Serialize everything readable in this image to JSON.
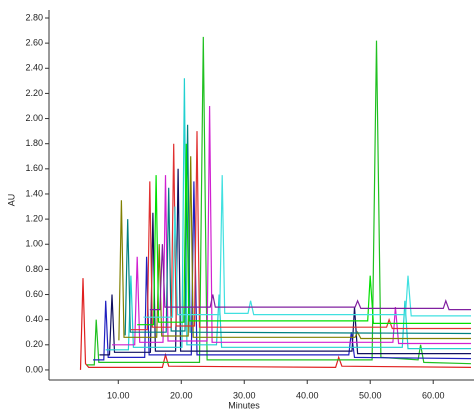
{
  "chart_data": {
    "type": "line",
    "ylabel": "AU",
    "xlabel": "Minutes",
    "xlim": [
      -1,
      66
    ],
    "ylim": [
      -0.08,
      2.8
    ],
    "xticks": [
      {
        "value": 10,
        "label": "10.00"
      },
      {
        "value": 20,
        "label": "20.00"
      },
      {
        "value": 30,
        "label": "30.00"
      },
      {
        "value": 40,
        "label": "40.00"
      },
      {
        "value": 50,
        "label": "50.00"
      },
      {
        "value": 60,
        "label": "60.00"
      }
    ],
    "yticks": [
      {
        "value": 0,
        "label": "0.00"
      },
      {
        "value": 0.2,
        "label": "0.20"
      },
      {
        "value": 0.4,
        "label": "0.40"
      },
      {
        "value": 0.6,
        "label": "0.60"
      },
      {
        "value": 0.8,
        "label": "0.80"
      },
      {
        "value": 1.0,
        "label": "1.00"
      },
      {
        "value": 1.2,
        "label": "1.20"
      },
      {
        "value": 1.4,
        "label": "1.40"
      },
      {
        "value": 1.6,
        "label": "1.60"
      },
      {
        "value": 1.8,
        "label": "1.80"
      },
      {
        "value": 2.0,
        "label": "2.00"
      },
      {
        "value": 2.2,
        "label": "2.20"
      },
      {
        "value": 2.4,
        "label": "2.40"
      },
      {
        "value": 2.6,
        "label": "2.60"
      },
      {
        "value": 2.8,
        "label": "2.80"
      }
    ],
    "series": [
      {
        "color": "#e02020",
        "x": [
          4,
          4.4,
          4.8,
          5.3,
          17,
          17.5,
          18,
          44.5,
          45,
          45.5,
          66
        ],
        "values": [
          0,
          0.73,
          0.05,
          0.02,
          0.02,
          0.12,
          0.03,
          0.02,
          0.1,
          0.03,
          0.02
        ]
      },
      {
        "color": "#20c020",
        "x": [
          5,
          6.2,
          6.5,
          6.9,
          22.9,
          23.5,
          24.1,
          50.3,
          51,
          51.7,
          57.6,
          58,
          58.5,
          66
        ],
        "values": [
          0.04,
          0.04,
          0.4,
          0.06,
          0.06,
          2.65,
          0.08,
          0.08,
          2.62,
          0.1,
          0.08,
          0.2,
          0.06,
          0.05
        ]
      },
      {
        "color": "#2020c0",
        "x": [
          6,
          7.7,
          8,
          8.4,
          14.2,
          14.5,
          14.9,
          21.6,
          22,
          22.5,
          46.6,
          47,
          47.5,
          66
        ],
        "values": [
          0.08,
          0.08,
          0.55,
          0.1,
          0.1,
          0.9,
          0.12,
          0.12,
          1.5,
          0.12,
          0.12,
          0.3,
          0.1,
          0.09
        ]
      },
      {
        "color": "#101060",
        "x": [
          7,
          8.6,
          9,
          9.4,
          15.1,
          15.5,
          15.9,
          19.1,
          19.5,
          19.9,
          47.1,
          47.5,
          48,
          66
        ],
        "values": [
          0.12,
          0.12,
          0.6,
          0.14,
          0.14,
          1.25,
          0.15,
          0.15,
          1.6,
          0.15,
          0.15,
          0.5,
          0.13,
          0.13
        ]
      },
      {
        "color": "#20d0d0",
        "x": [
          8,
          11.6,
          12,
          12.4,
          20.1,
          20.5,
          20.9,
          25.6,
          26,
          26.4,
          55.1,
          55.5,
          56,
          66
        ],
        "values": [
          0.16,
          0.16,
          0.75,
          0.18,
          0.18,
          2.32,
          0.2,
          0.2,
          0.6,
          0.18,
          0.18,
          0.55,
          0.17,
          0.17
        ]
      },
      {
        "color": "#d020d0",
        "x": [
          9,
          12.6,
          13,
          13.4,
          17.1,
          17.5,
          17.9,
          24.1,
          24.5,
          24.9,
          53.6,
          54,
          54.5,
          66
        ],
        "values": [
          0.2,
          0.2,
          0.9,
          0.22,
          0.22,
          1.55,
          0.23,
          0.23,
          2.1,
          0.22,
          0.22,
          0.5,
          0.21,
          0.21
        ]
      },
      {
        "color": "#808000",
        "x": [
          10,
          10.1,
          10.5,
          10.9,
          16.1,
          16.5,
          16.9,
          21.1,
          21.5,
          21.9,
          47.6,
          48,
          48.5,
          66
        ],
        "values": [
          0.24,
          0.24,
          1.35,
          0.26,
          0.26,
          1.0,
          0.27,
          0.27,
          1.7,
          0.26,
          0.26,
          0.3,
          0.25,
          0.25
        ]
      },
      {
        "color": "#008080",
        "x": [
          11,
          11.1,
          11.5,
          11.9,
          17.6,
          18,
          18.4,
          20.6,
          21,
          21.4,
          66
        ],
        "values": [
          0.28,
          0.28,
          1.2,
          0.3,
          0.3,
          1.45,
          0.31,
          0.31,
          1.95,
          0.3,
          0.29
        ]
      },
      {
        "color": "#e03030",
        "x": [
          12,
          14.6,
          15,
          15.4,
          18.4,
          18.8,
          19.2,
          22.1,
          22.5,
          22.9,
          52.6,
          53,
          53.5,
          66
        ],
        "values": [
          0.32,
          0.32,
          1.5,
          0.34,
          0.34,
          1.8,
          0.35,
          0.35,
          1.9,
          0.34,
          0.34,
          0.4,
          0.33,
          0.33
        ]
      },
      {
        "color": "#00e000",
        "x": [
          13,
          15.6,
          16,
          16.4,
          20.4,
          20.8,
          21.2,
          49.6,
          50,
          50.5,
          66
        ],
        "values": [
          0.36,
          0.36,
          1.55,
          0.38,
          0.38,
          1.8,
          0.39,
          0.39,
          0.75,
          0.37,
          0.37
        ]
      },
      {
        "color": "#40e0e0",
        "x": [
          14,
          18.6,
          19,
          19.4,
          26.1,
          26.5,
          26.9,
          30.6,
          31,
          31.5,
          55.6,
          56,
          56.5,
          66
        ],
        "values": [
          0.42,
          0.42,
          1.3,
          0.44,
          0.44,
          1.55,
          0.45,
          0.45,
          0.55,
          0.44,
          0.44,
          0.75,
          0.43,
          0.43
        ]
      },
      {
        "color": "#8020a0",
        "x": [
          15,
          16.6,
          17,
          17.4,
          24.6,
          25,
          25.4,
          47.6,
          48,
          48.5,
          61.6,
          62,
          62.5,
          66
        ],
        "values": [
          0.48,
          0.48,
          1.0,
          0.5,
          0.5,
          0.6,
          0.5,
          0.5,
          0.55,
          0.49,
          0.49,
          0.55,
          0.48,
          0.48
        ]
      }
    ]
  }
}
